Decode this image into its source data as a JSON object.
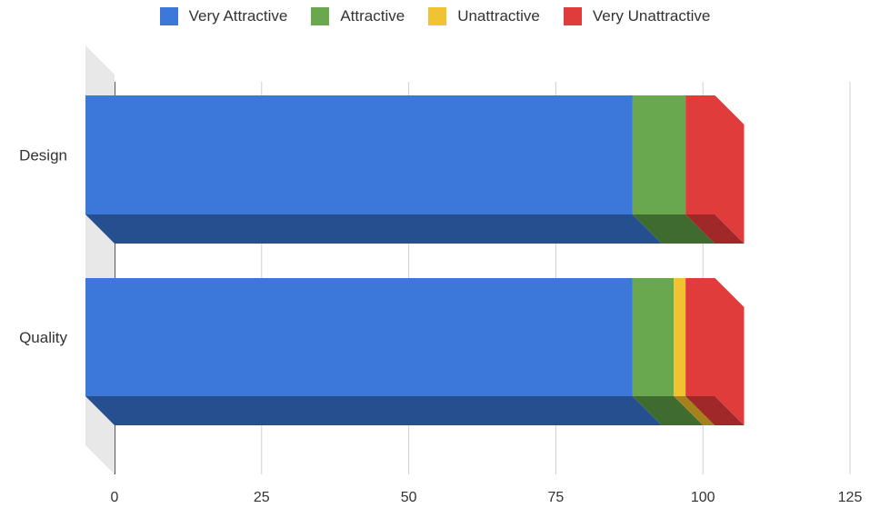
{
  "chart_data": {
    "type": "bar",
    "orientation": "horizontal",
    "stacked": true,
    "three_d": true,
    "categories": [
      "Design",
      "Quality"
    ],
    "series": [
      {
        "name": "Very Attractive",
        "values": [
          93,
          93
        ],
        "color": "#3c78d8",
        "shade": "#264f8f"
      },
      {
        "name": "Attractive",
        "values": [
          9,
          7
        ],
        "color": "#6aa84f",
        "shade": "#3f6b2f"
      },
      {
        "name": "Unattractive",
        "values": [
          0,
          2
        ],
        "color": "#f1c232",
        "shade": "#a5811c"
      },
      {
        "name": "Very Unattractive",
        "values": [
          5,
          5
        ],
        "color": "#e03c3c",
        "shade": "#a02828"
      }
    ],
    "x_ticks": [
      "0",
      "25",
      "50",
      "75",
      "100",
      "125"
    ],
    "xlim": [
      0,
      125
    ],
    "grid": true,
    "legend_position": "top"
  }
}
